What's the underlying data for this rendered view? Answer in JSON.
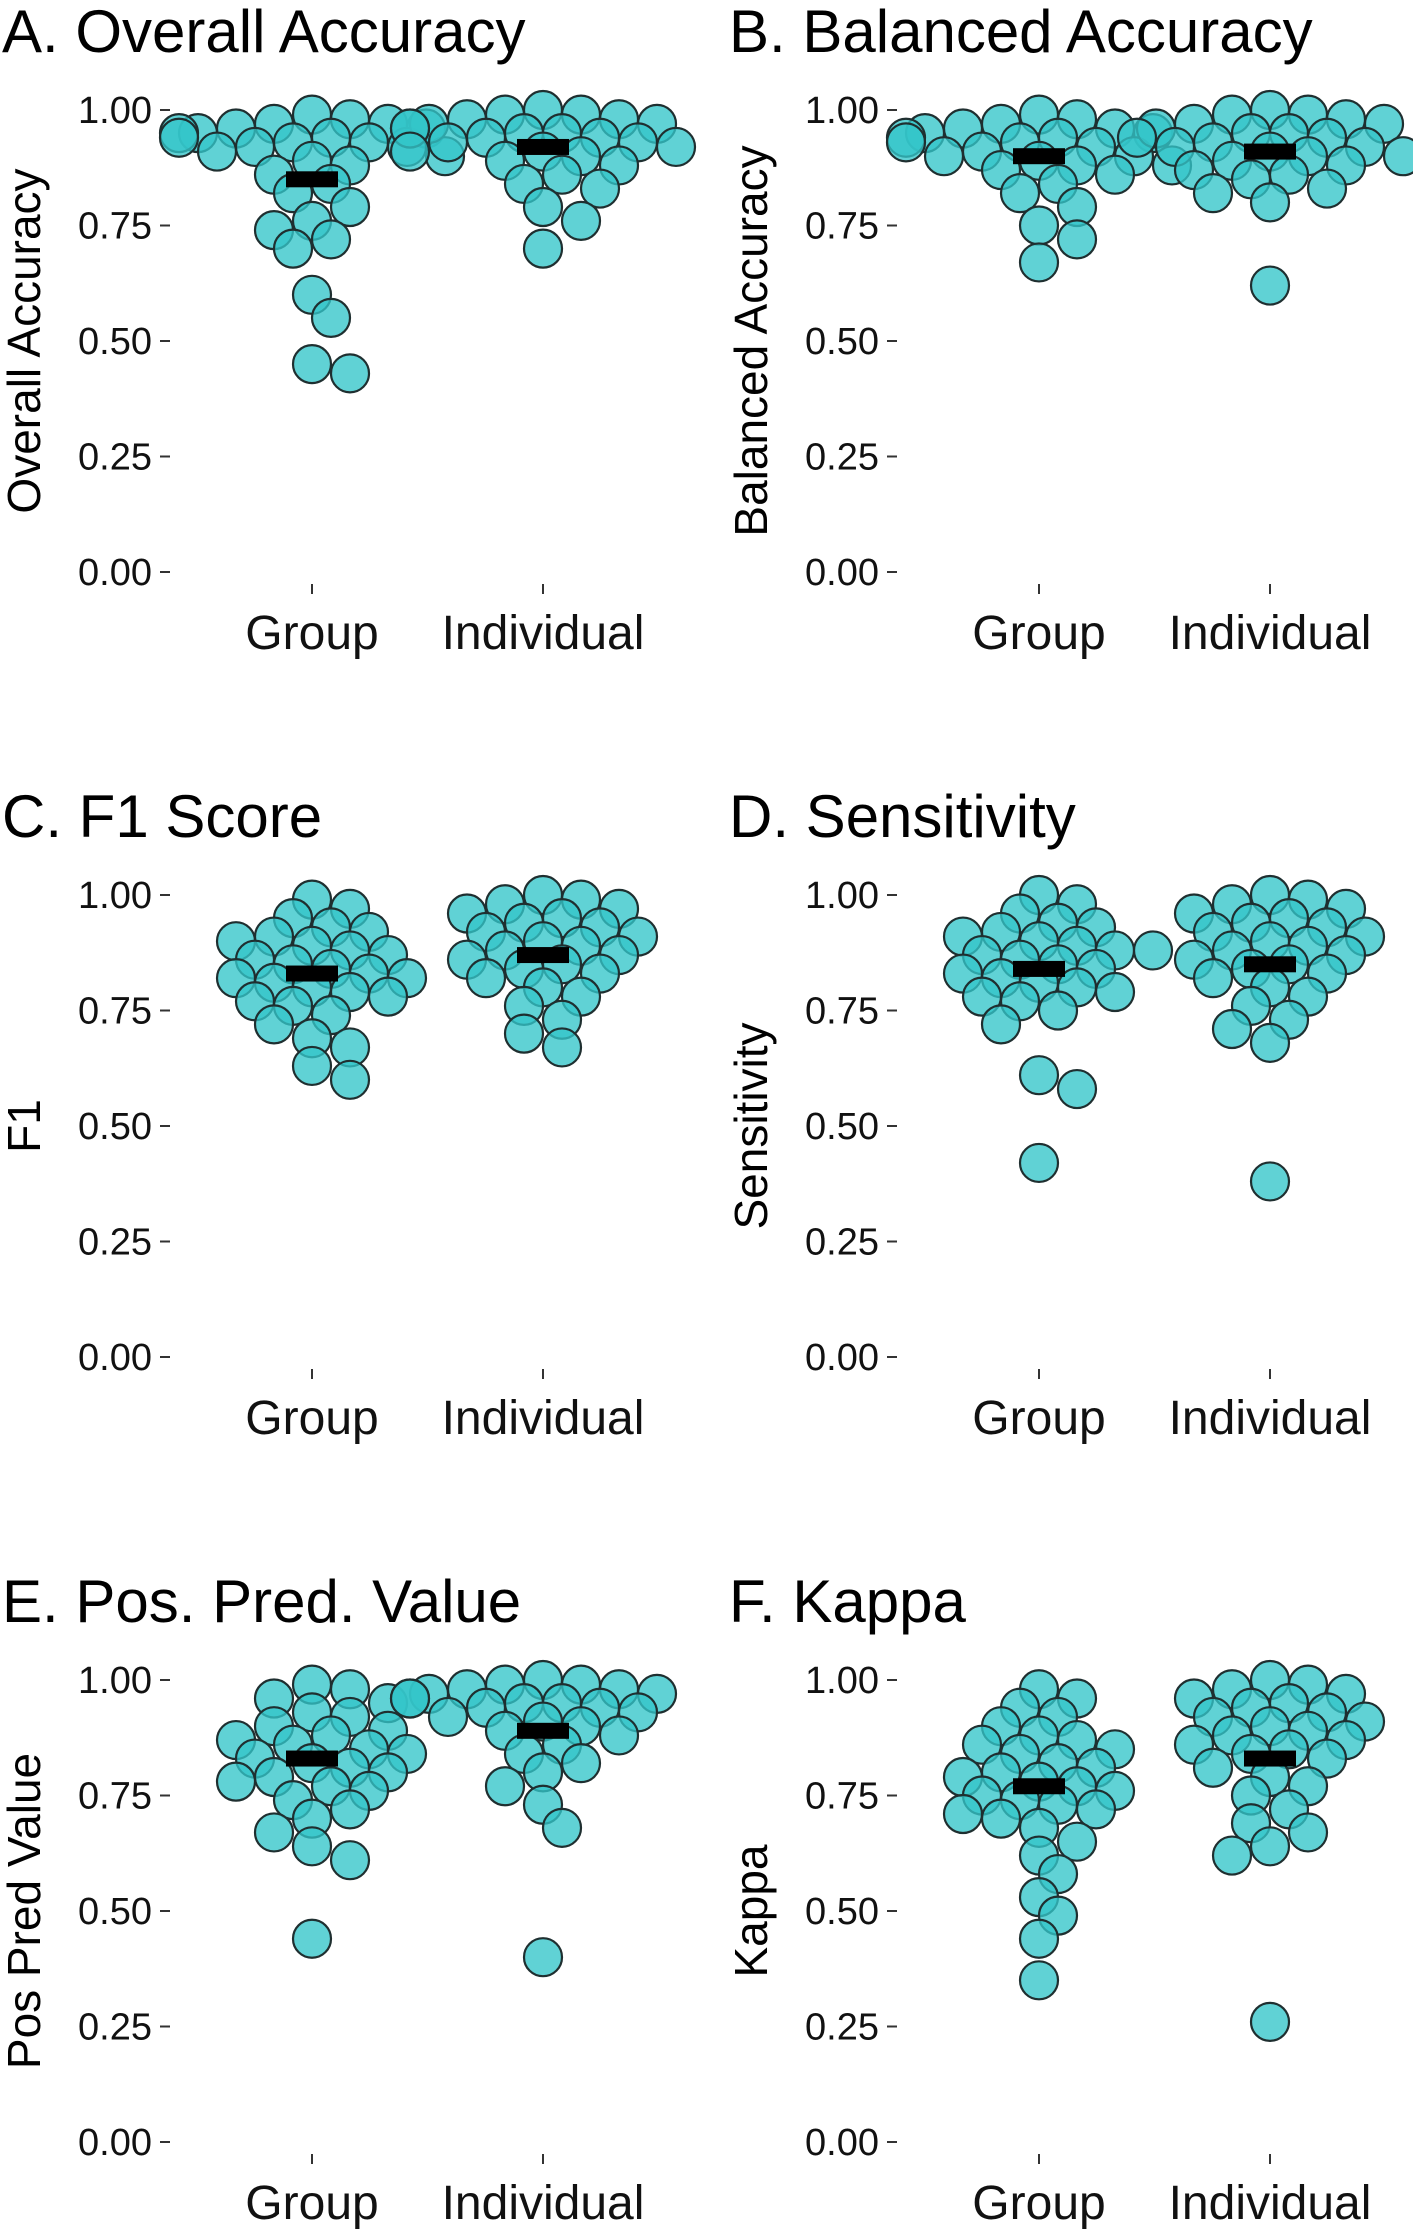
{
  "figure": {
    "background": "#ffffff",
    "point_color": "#33c5c9",
    "point_stroke": "#1f2f30",
    "mean_bar_color": "#000000"
  },
  "chart_data": [
    {
      "type": "scatter",
      "title": "A. Overall Accuracy",
      "ylabel": "Overall Accuracy",
      "categories": [
        "Group",
        "Individual"
      ],
      "ylim": [
        0,
        1
      ],
      "yticks": [
        "0.00",
        "0.25",
        "0.50",
        "0.75",
        "1.00"
      ],
      "means": [
        0.85,
        0.92
      ],
      "series": [
        {
          "category": "Group",
          "values": [
            0.99,
            0.98,
            0.97,
            0.97,
            0.96,
            0.96,
            0.95,
            0.95,
            0.94,
            0.94,
            0.93,
            0.93,
            0.92,
            0.92,
            0.91,
            0.9,
            0.89,
            0.88,
            0.86,
            0.84,
            0.82,
            0.79,
            0.76,
            0.74,
            0.72,
            0.7,
            0.6,
            0.55,
            0.45,
            0.43
          ]
        },
        {
          "category": "Individual",
          "values": [
            1.0,
            0.99,
            0.99,
            0.98,
            0.98,
            0.97,
            0.97,
            0.96,
            0.96,
            0.95,
            0.95,
            0.94,
            0.94,
            0.93,
            0.93,
            0.92,
            0.91,
            0.91,
            0.9,
            0.89,
            0.88,
            0.86,
            0.84,
            0.83,
            0.79,
            0.76,
            0.7
          ]
        }
      ]
    },
    {
      "type": "scatter",
      "title": "B. Balanced Accuracy",
      "ylabel": "Balanced Accuracy",
      "categories": [
        "Group",
        "Individual"
      ],
      "ylim": [
        0,
        1
      ],
      "yticks": [
        "0.00",
        "0.25",
        "0.50",
        "0.75",
        "1.00"
      ],
      "means": [
        0.9,
        0.91
      ],
      "series": [
        {
          "category": "Group",
          "values": [
            0.99,
            0.98,
            0.97,
            0.96,
            0.96,
            0.95,
            0.95,
            0.94,
            0.94,
            0.93,
            0.93,
            0.92,
            0.91,
            0.9,
            0.9,
            0.89,
            0.88,
            0.88,
            0.87,
            0.86,
            0.84,
            0.82,
            0.79,
            0.75,
            0.72,
            0.67
          ]
        },
        {
          "category": "Individual",
          "values": [
            1.0,
            0.99,
            0.99,
            0.98,
            0.97,
            0.97,
            0.96,
            0.95,
            0.95,
            0.94,
            0.94,
            0.93,
            0.92,
            0.92,
            0.91,
            0.9,
            0.9,
            0.89,
            0.88,
            0.87,
            0.86,
            0.85,
            0.83,
            0.82,
            0.8,
            0.62
          ]
        }
      ]
    },
    {
      "type": "scatter",
      "title": "C. F1 Score",
      "ylabel": "F1",
      "categories": [
        "Group",
        "Individual"
      ],
      "ylim": [
        0,
        1
      ],
      "yticks": [
        "0.00",
        "0.25",
        "0.50",
        "0.75",
        "1.00"
      ],
      "means": [
        0.83,
        0.87
      ],
      "series": [
        {
          "category": "Group",
          "values": [
            0.99,
            0.97,
            0.95,
            0.93,
            0.92,
            0.91,
            0.9,
            0.89,
            0.88,
            0.87,
            0.86,
            0.85,
            0.84,
            0.83,
            0.82,
            0.82,
            0.81,
            0.8,
            0.79,
            0.78,
            0.77,
            0.76,
            0.74,
            0.72,
            0.69,
            0.67,
            0.63,
            0.6
          ]
        },
        {
          "category": "Individual",
          "values": [
            1.0,
            0.99,
            0.98,
            0.97,
            0.96,
            0.95,
            0.94,
            0.93,
            0.92,
            0.91,
            0.9,
            0.89,
            0.88,
            0.87,
            0.86,
            0.85,
            0.84,
            0.83,
            0.82,
            0.8,
            0.78,
            0.76,
            0.73,
            0.7,
            0.67
          ]
        }
      ]
    },
    {
      "type": "scatter",
      "title": "D. Sensitivity",
      "ylabel": "Sensitivity",
      "categories": [
        "Group",
        "Individual"
      ],
      "ylim": [
        0,
        1
      ],
      "yticks": [
        "0.00",
        "0.25",
        "0.50",
        "0.75",
        "1.00"
      ],
      "means": [
        0.84,
        0.85
      ],
      "series": [
        {
          "category": "Group",
          "values": [
            1.0,
            0.98,
            0.96,
            0.94,
            0.93,
            0.92,
            0.91,
            0.9,
            0.89,
            0.88,
            0.88,
            0.87,
            0.86,
            0.85,
            0.84,
            0.83,
            0.82,
            0.81,
            0.8,
            0.79,
            0.78,
            0.77,
            0.75,
            0.72,
            0.61,
            0.58,
            0.42
          ]
        },
        {
          "category": "Individual",
          "values": [
            1.0,
            0.99,
            0.98,
            0.97,
            0.96,
            0.95,
            0.94,
            0.93,
            0.92,
            0.91,
            0.9,
            0.89,
            0.88,
            0.87,
            0.86,
            0.85,
            0.84,
            0.83,
            0.82,
            0.8,
            0.78,
            0.76,
            0.73,
            0.71,
            0.68,
            0.38
          ]
        }
      ]
    },
    {
      "type": "scatter",
      "title": "E. Pos. Pred. Value",
      "ylabel": "Pos Pred Value",
      "categories": [
        "Group",
        "Individual"
      ],
      "ylim": [
        0,
        1
      ],
      "yticks": [
        "0.00",
        "0.25",
        "0.50",
        "0.75",
        "1.00"
      ],
      "means": [
        0.83,
        0.89
      ],
      "series": [
        {
          "category": "Group",
          "values": [
            0.99,
            0.98,
            0.96,
            0.95,
            0.93,
            0.92,
            0.9,
            0.89,
            0.88,
            0.87,
            0.86,
            0.85,
            0.84,
            0.83,
            0.82,
            0.81,
            0.8,
            0.79,
            0.78,
            0.77,
            0.76,
            0.74,
            0.72,
            0.7,
            0.67,
            0.64,
            0.61,
            0.44
          ]
        },
        {
          "category": "Individual",
          "values": [
            1.0,
            0.99,
            0.99,
            0.98,
            0.98,
            0.97,
            0.97,
            0.96,
            0.96,
            0.95,
            0.95,
            0.94,
            0.94,
            0.93,
            0.92,
            0.91,
            0.9,
            0.89,
            0.88,
            0.86,
            0.84,
            0.82,
            0.8,
            0.77,
            0.73,
            0.68,
            0.4
          ]
        }
      ]
    },
    {
      "type": "scatter",
      "title": "F. Kappa",
      "ylabel": "Kappa",
      "categories": [
        "Group",
        "Individual"
      ],
      "ylim": [
        0,
        1
      ],
      "yticks": [
        "0.00",
        "0.25",
        "0.50",
        "0.75",
        "1.00"
      ],
      "means": [
        0.77,
        0.83
      ],
      "series": [
        {
          "category": "Group",
          "values": [
            0.98,
            0.96,
            0.94,
            0.92,
            0.9,
            0.88,
            0.87,
            0.86,
            0.85,
            0.84,
            0.82,
            0.81,
            0.8,
            0.79,
            0.78,
            0.77,
            0.76,
            0.75,
            0.74,
            0.73,
            0.72,
            0.71,
            0.7,
            0.68,
            0.65,
            0.62,
            0.58,
            0.53,
            0.49,
            0.44,
            0.35
          ]
        },
        {
          "category": "Individual",
          "values": [
            1.0,
            0.99,
            0.98,
            0.97,
            0.96,
            0.95,
            0.94,
            0.93,
            0.92,
            0.91,
            0.9,
            0.89,
            0.88,
            0.87,
            0.86,
            0.85,
            0.84,
            0.83,
            0.81,
            0.79,
            0.77,
            0.75,
            0.72,
            0.69,
            0.67,
            0.64,
            0.62,
            0.26
          ]
        }
      ]
    }
  ]
}
